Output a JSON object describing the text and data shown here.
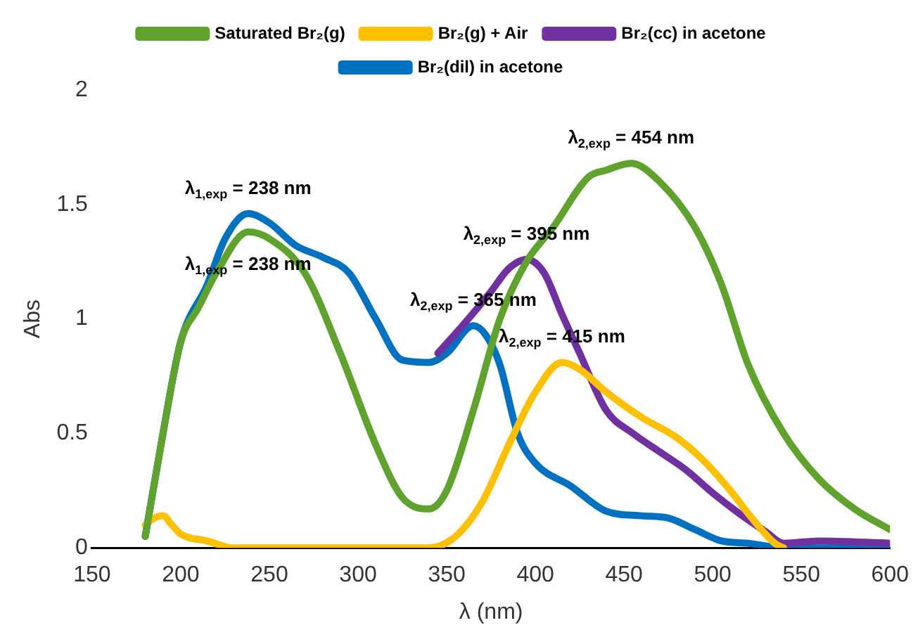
{
  "chart_data": {
    "type": "line",
    "xlabel": "λ (nm)",
    "ylabel": "Abs",
    "xlim": [
      150,
      600
    ],
    "xticks": [
      150,
      200,
      250,
      300,
      350,
      400,
      450,
      500,
      550,
      600
    ],
    "ylim": [
      0,
      2
    ],
    "yticks": [
      0,
      0.5,
      1,
      1.5,
      2
    ],
    "grid": false,
    "legend": "top",
    "marker": "none",
    "line_style": "solid",
    "series": [
      {
        "name": "Saturated Br₂(g)",
        "color": "#5fa22d",
        "x": [
          180,
          190,
          200,
          210,
          220,
          238,
          250,
          270,
          290,
          310,
          325,
          340,
          350,
          365,
          380,
          395,
          410,
          430,
          440,
          454,
          470,
          490,
          505,
          520,
          540,
          560,
          580,
          600
        ],
        "values": [
          0.05,
          0.5,
          0.9,
          1.05,
          1.2,
          1.38,
          1.35,
          1.2,
          0.85,
          0.45,
          0.22,
          0.17,
          0.25,
          0.6,
          1.0,
          1.25,
          1.4,
          1.62,
          1.65,
          1.68,
          1.6,
          1.4,
          1.15,
          0.8,
          0.5,
          0.3,
          0.17,
          0.08
        ]
      },
      {
        "name": "Br₂(g) + Air",
        "color": "#ffc000",
        "x": [
          180,
          185,
          190,
          195,
          200,
          215,
          230,
          260,
          300,
          340,
          355,
          370,
          385,
          400,
          415,
          425,
          440,
          460,
          480,
          495,
          510,
          520,
          535,
          540
        ],
        "values": [
          0.1,
          0.13,
          0.14,
          0.1,
          0.06,
          0.03,
          0,
          0,
          0,
          0,
          0.05,
          0.2,
          0.45,
          0.68,
          0.81,
          0.78,
          0.68,
          0.57,
          0.48,
          0.38,
          0.25,
          0.15,
          0.02,
          0
        ]
      },
      {
        "name": "Br₂(cc) in acetone",
        "color": "#7030a0",
        "x": [
          345,
          360,
          375,
          385,
          395,
          405,
          415,
          425,
          440,
          455,
          470,
          485,
          500,
          515,
          530,
          540,
          560,
          600
        ],
        "values": [
          0.85,
          0.98,
          1.12,
          1.22,
          1.26,
          1.2,
          1.02,
          0.85,
          0.6,
          0.5,
          0.42,
          0.34,
          0.24,
          0.15,
          0.07,
          0.02,
          0.03,
          0.02
        ]
      },
      {
        "name": "Br₂(dil) in acetone",
        "color": "#0070c0",
        "x": [
          180,
          190,
          200,
          215,
          225,
          238,
          250,
          265,
          280,
          295,
          310,
          325,
          340,
          350,
          365,
          372,
          380,
          390,
          400,
          420,
          440,
          460,
          475,
          490,
          505,
          520,
          540,
          560,
          600
        ],
        "values": [
          0.05,
          0.5,
          0.9,
          1.15,
          1.35,
          1.46,
          1.42,
          1.32,
          1.27,
          1.2,
          1.0,
          0.82,
          0.81,
          0.85,
          0.97,
          0.93,
          0.8,
          0.5,
          0.37,
          0.27,
          0.16,
          0.14,
          0.13,
          0.08,
          0.03,
          0.02,
          0,
          0,
          0
        ]
      }
    ],
    "annotations": [
      {
        "text": "λ$_{1,exp}$ = 238 nm",
        "x": 238,
        "y": 1.46
      },
      {
        "text": "λ$_{1,exp}$ = 238 nm",
        "x": 238,
        "y": 1.38
      },
      {
        "text": "λ$_{2,exp}$ = 454 nm",
        "x": 454,
        "y": 1.68
      },
      {
        "text": "λ$_{2,exp}$ = 395 nm",
        "x": 395,
        "y": 1.26
      },
      {
        "text": "λ$_{2,exp}$ = 365 nm",
        "x": 365,
        "y": 0.97
      },
      {
        "text": "λ$_{2,exp}$ = 415 nm",
        "x": 415,
        "y": 0.81
      }
    ]
  }
}
